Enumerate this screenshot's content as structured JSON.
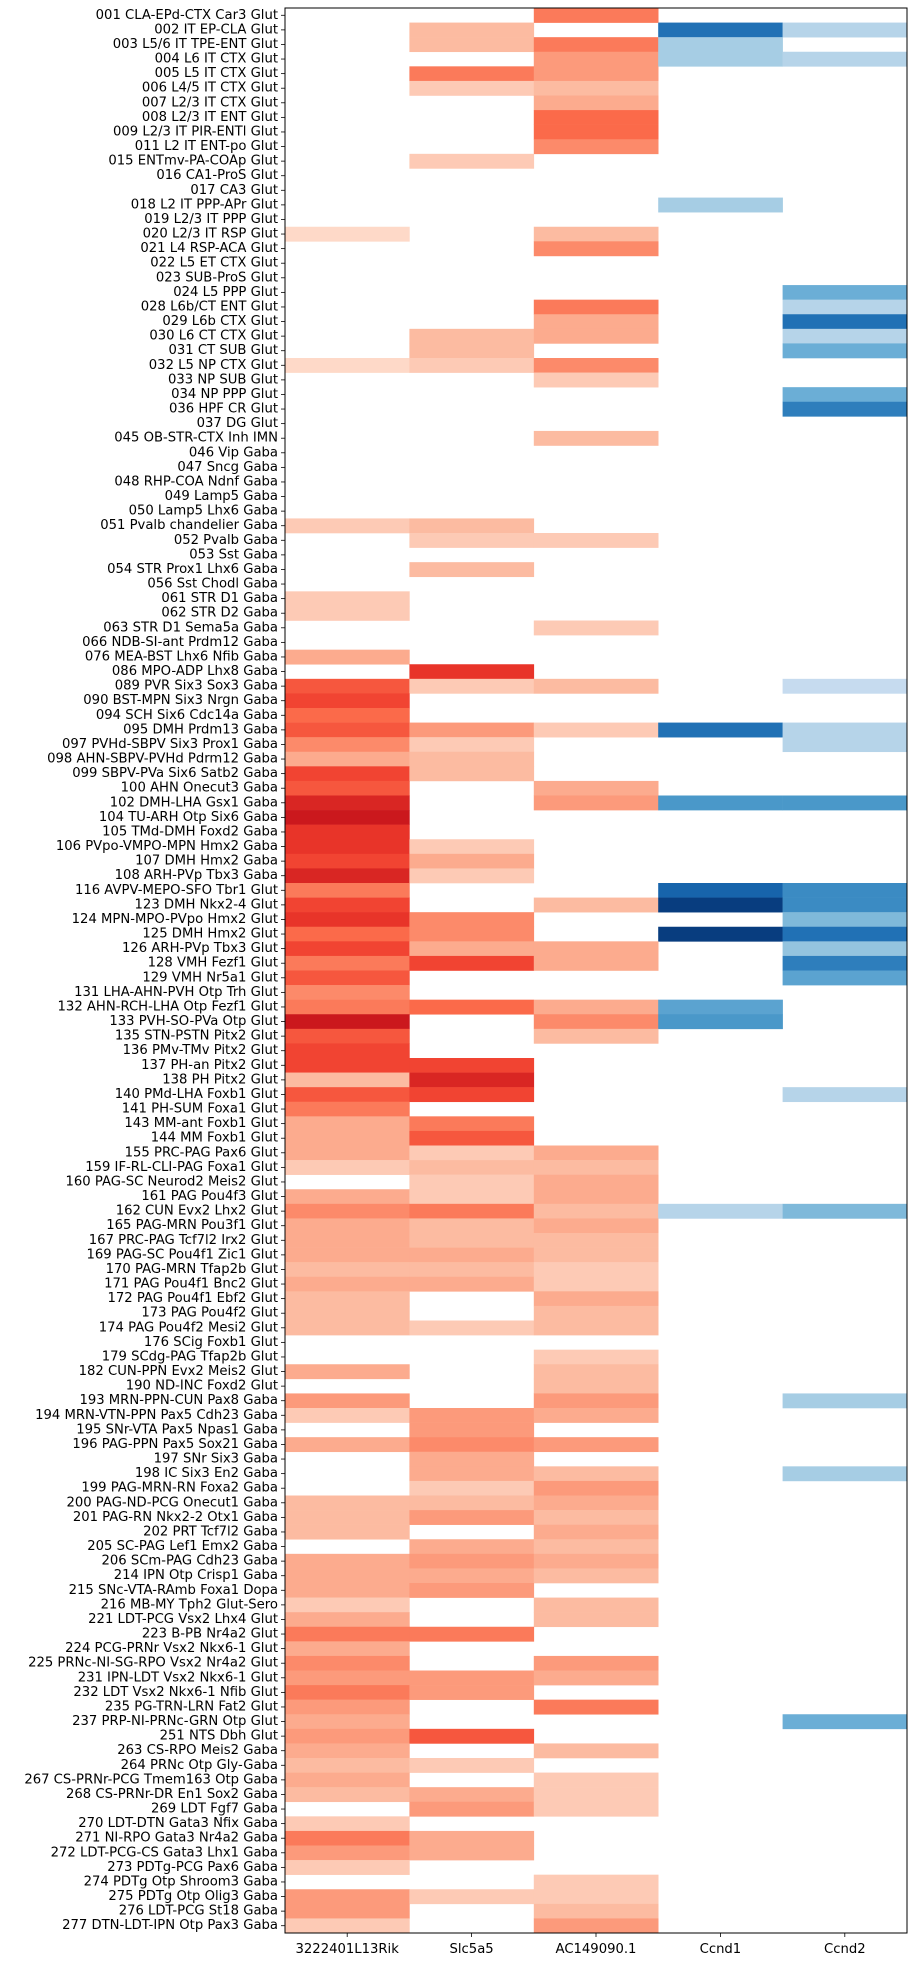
{
  "chart_data": {
    "type": "heatmap",
    "title": "",
    "xlabel": "",
    "ylabel": "",
    "columns": [
      "3222401L13Rik",
      "Slc5a5",
      "AC149090.1",
      "Ccnd1",
      "Ccnd2"
    ],
    "column_colormaps": [
      "reds",
      "reds",
      "reds",
      "blues",
      "blues"
    ],
    "value_range": [
      0,
      1
    ],
    "rows": [
      "001 CLA-EPd-CTX Car3 Glut",
      "002 IT EP-CLA Glut",
      "003 L5/6 IT TPE-ENT Glut",
      "004 L6 IT CTX Glut",
      "005 L5 IT CTX Glut",
      "006 L4/5 IT CTX Glut",
      "007 L2/3 IT CTX Glut",
      "008 L2/3 IT ENT Glut",
      "009 L2/3 IT PIR-ENTl Glut",
      "011 L2 IT ENT-po Glut",
      "015 ENTmv-PA-COAp Glut",
      "016 CA1-ProS Glut",
      "017 CA3 Glut",
      "018 L2 IT PPP-APr Glut",
      "019 L2/3 IT PPP Glut",
      "020 L2/3 IT RSP Glut",
      "021 L4 RSP-ACA Glut",
      "022 L5 ET CTX Glut",
      "023 SUB-ProS Glut",
      "024 L5 PPP Glut",
      "028 L6b/CT ENT Glut",
      "029 L6b CTX Glut",
      "030 L6 CT CTX Glut",
      "031 CT SUB Glut",
      "032 L5 NP CTX Glut",
      "033 NP SUB Glut",
      "034 NP PPP Glut",
      "036 HPF CR Glut",
      "037 DG Glut",
      "045 OB-STR-CTX Inh IMN",
      "046 Vip Gaba",
      "047 Sncg Gaba",
      "048 RHP-COA Ndnf Gaba",
      "049 Lamp5 Gaba",
      "050 Lamp5 Lhx6 Gaba",
      "051 Pvalb chandelier Gaba",
      "052 Pvalb Gaba",
      "053 Sst Gaba",
      "054 STR Prox1 Lhx6 Gaba",
      "056 Sst Chodl Gaba",
      "061 STR D1 Gaba",
      "062 STR D2 Gaba",
      "063 STR D1 Sema5a Gaba",
      "066 NDB-SI-ant Prdm12 Gaba",
      "076 MEA-BST Lhx6 Nfib Gaba",
      "086 MPO-ADP Lhx8 Gaba",
      "089 PVR Six3 Sox3 Gaba",
      "090 BST-MPN Six3 Nrgn Gaba",
      "094 SCH Six6 Cdc14a Gaba",
      "095 DMH Prdm13 Gaba",
      "097 PVHd-SBPV Six3 Prox1 Gaba",
      "098 AHN-SBPV-PVHd Pdrm12 Gaba",
      "099 SBPV-PVa Six6 Satb2 Gaba",
      "100 AHN Onecut3 Gaba",
      "102 DMH-LHA Gsx1 Gaba",
      "104 TU-ARH Otp Six6 Gaba",
      "105 TMd-DMH Foxd2 Gaba",
      "106 PVpo-VMPO-MPN Hmx2 Gaba",
      "107 DMH Hmx2 Gaba",
      "108 ARH-PVp Tbx3 Gaba",
      "116 AVPV-MEPO-SFO Tbr1 Glut",
      "123 DMH Nkx2-4 Glut",
      "124 MPN-MPO-PVpo Hmx2 Glut",
      "125 DMH Hmx2 Glut",
      "126 ARH-PVp Tbx3 Glut",
      "128 VMH Fezf1 Glut",
      "129 VMH Nr5a1 Glut",
      "131 LHA-AHN-PVH Otp Trh Glut",
      "132 AHN-RCH-LHA Otp Fezf1 Glut",
      "133 PVH-SO-PVa Otp Glut",
      "135 STN-PSTN Pitx2 Glut",
      "136 PMv-TMv Pitx2 Glut",
      "137 PH-an Pitx2 Glut",
      "138 PH Pitx2 Glut",
      "140 PMd-LHA Foxb1 Glut",
      "141 PH-SUM Foxa1 Glut",
      "143 MM-ant Foxb1 Glut",
      "144 MM Foxb1 Glut",
      "155 PRC-PAG Pax6 Glut",
      "159 IF-RL-CLI-PAG Foxa1 Glut",
      "160 PAG-SC Neurod2 Meis2 Glut",
      "161 PAG Pou4f3 Glut",
      "162 CUN Evx2 Lhx2 Glut",
      "165 PAG-MRN Pou3f1 Glut",
      "167 PRC-PAG Tcf7l2 Irx2 Glut",
      "169 PAG-SC Pou4f1 Zic1 Glut",
      "170 PAG-MRN Tfap2b Glut",
      "171 PAG Pou4f1 Bnc2 Glut",
      "172 PAG Pou4f1 Ebf2 Glut",
      "173 PAG Pou4f2 Glut",
      "174 PAG Pou4f2 Mesi2 Glut",
      "176 SCig Foxb1 Glut",
      "179 SCdg-PAG Tfap2b Glut",
      "182 CUN-PPN Evx2 Meis2 Glut",
      "190 ND-INC Foxd2 Glut",
      "193 MRN-PPN-CUN Pax8 Gaba",
      "194 MRN-VTN-PPN Pax5 Cdh23 Gaba",
      "195 SNr-VTA Pax5 Npas1 Gaba",
      "196 PAG-PPN Pax5 Sox21 Gaba",
      "197 SNr Six3 Gaba",
      "198 IC Six3 En2 Gaba",
      "199 PAG-MRN-RN Foxa2 Gaba",
      "200 PAG-ND-PCG Onecut1 Gaba",
      "201 PAG-RN Nkx2-2 Otx1 Gaba",
      "202 PRT Tcf7l2 Gaba",
      "205 SC-PAG Lef1 Emx2 Gaba",
      "206 SCm-PAG Cdh23 Gaba",
      "214 IPN Otp Crisp1 Gaba",
      "215 SNc-VTA-RAmb Foxa1 Dopa",
      "216 MB-MY Tph2 Glut-Sero",
      "221 LDT-PCG Vsx2 Lhx4 Glut",
      "223 B-PB Nr4a2 Glut",
      "224 PCG-PRNr Vsx2 Nkx6-1 Glut",
      "225 PRNc-NI-SG-RPO Vsx2 Nr4a2 Glut",
      "231 IPN-LDT Vsx2 Nkx6-1 Glut",
      "232 LDT Vsx2 Nkx6-1 Nfib Glut",
      "235 PG-TRN-LRN Fat2 Glut",
      "237 PRP-NI-PRNc-GRN Otp Glut",
      "251 NTS Dbh Glut",
      "263 CS-RPO Meis2 Gaba",
      "264 PRNc Otp Gly-Gaba",
      "267 CS-PRNr-PCG Tmem163 Otp Gaba",
      "268 CS-PRNr-DR En1 Sox2 Gaba",
      "269 LDT Fgf7 Gaba",
      "270 LDT-DTN Gata3 Nfix Gaba",
      "271 NI-RPO Gata3 Nr4a2 Gaba",
      "272 LDT-PCG-CS Gata3 Lhx1 Gaba",
      "273 PDTg-PCG Pax6 Gaba",
      "274 PDTg Otp Shroom3 Gaba",
      "275 PDTg Otp Olig3 Gaba",
      "276 LDT-PCG St18 Gaba",
      "277 DTN-LDT-IPN Otp Pax3 Gaba"
    ],
    "values": [
      [
        0,
        0,
        0.45,
        0,
        0
      ],
      [
        0,
        0.25,
        0,
        0.75,
        0.3
      ],
      [
        0,
        0.25,
        0.45,
        0.35,
        0
      ],
      [
        0,
        0,
        0.35,
        0.35,
        0.3
      ],
      [
        0,
        0.45,
        0.35,
        0,
        0
      ],
      [
        0,
        0.2,
        0.25,
        0,
        0
      ],
      [
        0,
        0,
        0.3,
        0,
        0
      ],
      [
        0,
        0,
        0.5,
        0,
        0
      ],
      [
        0,
        0,
        0.5,
        0,
        0
      ],
      [
        0,
        0,
        0.4,
        0,
        0
      ],
      [
        0,
        0.2,
        0,
        0,
        0
      ],
      [
        0,
        0,
        0,
        0,
        0
      ],
      [
        0,
        0,
        0,
        0,
        0
      ],
      [
        0,
        0,
        0,
        0.35,
        0
      ],
      [
        0,
        0,
        0,
        0,
        0
      ],
      [
        0.15,
        0,
        0.25,
        0,
        0
      ],
      [
        0,
        0,
        0.4,
        0,
        0
      ],
      [
        0,
        0,
        0,
        0,
        0
      ],
      [
        0,
        0,
        0,
        0,
        0
      ],
      [
        0,
        0,
        0,
        0,
        0.5
      ],
      [
        0,
        0,
        0.45,
        0,
        0.3
      ],
      [
        0,
        0,
        0.3,
        0,
        0.75
      ],
      [
        0,
        0.25,
        0.3,
        0,
        0.3
      ],
      [
        0,
        0.25,
        0,
        0,
        0.5
      ],
      [
        0.15,
        0.2,
        0.4,
        0,
        0
      ],
      [
        0,
        0,
        0.2,
        0,
        0
      ],
      [
        0,
        0,
        0,
        0,
        0.5
      ],
      [
        0,
        0,
        0,
        0,
        0.7
      ],
      [
        0,
        0,
        0,
        0,
        0
      ],
      [
        0,
        0,
        0.25,
        0,
        0
      ],
      [
        0,
        0,
        0,
        0,
        0
      ],
      [
        0,
        0,
        0,
        0,
        0
      ],
      [
        0,
        0,
        0,
        0,
        0
      ],
      [
        0,
        0,
        0,
        0,
        0
      ],
      [
        0,
        0,
        0,
        0,
        0
      ],
      [
        0.2,
        0.25,
        0,
        0,
        0
      ],
      [
        0,
        0.2,
        0.2,
        0,
        0
      ],
      [
        0,
        0,
        0,
        0,
        0
      ],
      [
        0,
        0.25,
        0,
        0,
        0
      ],
      [
        0,
        0,
        0,
        0,
        0
      ],
      [
        0.2,
        0,
        0,
        0,
        0
      ],
      [
        0.2,
        0,
        0,
        0,
        0
      ],
      [
        0,
        0,
        0.2,
        0,
        0
      ],
      [
        0,
        0,
        0,
        0,
        0
      ],
      [
        0.3,
        0,
        0,
        0,
        0
      ],
      [
        0,
        0.65,
        0,
        0,
        0
      ],
      [
        0.55,
        0.2,
        0.25,
        0,
        0.25
      ],
      [
        0.6,
        0,
        0,
        0,
        0
      ],
      [
        0.5,
        0,
        0,
        0,
        0
      ],
      [
        0.55,
        0.35,
        0.2,
        0.75,
        0.3
      ],
      [
        0.4,
        0.2,
        0,
        0,
        0.3
      ],
      [
        0.3,
        0.25,
        0,
        0,
        0
      ],
      [
        0.6,
        0.25,
        0,
        0,
        0
      ],
      [
        0.55,
        0,
        0.3,
        0,
        0
      ],
      [
        0.7,
        0,
        0.35,
        0.6,
        0.6
      ],
      [
        0.75,
        0,
        0,
        0,
        0
      ],
      [
        0.65,
        0,
        0,
        0,
        0
      ],
      [
        0.65,
        0.2,
        0,
        0,
        0
      ],
      [
        0.6,
        0.3,
        0,
        0,
        0
      ],
      [
        0.7,
        0.2,
        0,
        0,
        0
      ],
      [
        0.45,
        0,
        0,
        0.8,
        0.65
      ],
      [
        0.6,
        0,
        0.25,
        0.95,
        0.65
      ],
      [
        0.65,
        0.4,
        0,
        0,
        0.45
      ],
      [
        0.5,
        0.4,
        0,
        0.95,
        0.75
      ],
      [
        0.6,
        0.3,
        0.3,
        0,
        0.4
      ],
      [
        0.45,
        0.6,
        0.3,
        0,
        0.7
      ],
      [
        0.55,
        0,
        0,
        0,
        0.55
      ],
      [
        0.4,
        0,
        0,
        0,
        0
      ],
      [
        0.45,
        0.5,
        0.3,
        0.55,
        0
      ],
      [
        0.75,
        0,
        0.4,
        0.6,
        0
      ],
      [
        0.55,
        0,
        0.25,
        0,
        0
      ],
      [
        0.6,
        0,
        0,
        0,
        0
      ],
      [
        0.6,
        0.6,
        0,
        0,
        0
      ],
      [
        0.25,
        0.7,
        0,
        0,
        0
      ],
      [
        0.55,
        0.6,
        0,
        0,
        0.3
      ],
      [
        0.45,
        0,
        0,
        0,
        0
      ],
      [
        0.3,
        0.45,
        0,
        0,
        0
      ],
      [
        0.3,
        0.55,
        0,
        0,
        0
      ],
      [
        0.3,
        0.2,
        0.3,
        0,
        0
      ],
      [
        0.2,
        0.25,
        0.25,
        0,
        0
      ],
      [
        0,
        0.2,
        0.3,
        0,
        0
      ],
      [
        0.3,
        0.2,
        0.3,
        0,
        0
      ],
      [
        0.4,
        0.45,
        0.25,
        0.3,
        0.45
      ],
      [
        0.3,
        0.25,
        0.3,
        0,
        0
      ],
      [
        0.3,
        0.25,
        0.25,
        0,
        0
      ],
      [
        0.3,
        0.3,
        0.25,
        0,
        0
      ],
      [
        0.25,
        0.25,
        0.2,
        0,
        0
      ],
      [
        0.3,
        0.3,
        0.2,
        0,
        0
      ],
      [
        0.25,
        0,
        0.3,
        0,
        0
      ],
      [
        0.25,
        0,
        0.25,
        0,
        0
      ],
      [
        0.25,
        0.2,
        0.25,
        0,
        0
      ],
      [
        0,
        0,
        0,
        0,
        0
      ],
      [
        0,
        0,
        0.2,
        0,
        0
      ],
      [
        0.3,
        0,
        0.25,
        0,
        0
      ],
      [
        0,
        0,
        0.25,
        0,
        0
      ],
      [
        0.35,
        0,
        0.35,
        0,
        0.35
      ],
      [
        0.2,
        0.35,
        0.3,
        0,
        0
      ],
      [
        0,
        0.35,
        0,
        0,
        0
      ],
      [
        0.3,
        0.4,
        0.35,
        0,
        0
      ],
      [
        0,
        0.3,
        0,
        0,
        0
      ],
      [
        0,
        0.3,
        0.25,
        0,
        0.35
      ],
      [
        0,
        0.2,
        0.35,
        0,
        0
      ],
      [
        0.25,
        0.25,
        0.3,
        0,
        0
      ],
      [
        0.25,
        0.35,
        0.25,
        0,
        0
      ],
      [
        0.25,
        0,
        0.3,
        0,
        0
      ],
      [
        0,
        0.3,
        0.25,
        0,
        0
      ],
      [
        0.3,
        0.35,
        0.3,
        0,
        0
      ],
      [
        0.3,
        0.3,
        0.25,
        0,
        0
      ],
      [
        0.3,
        0.35,
        0,
        0,
        0
      ],
      [
        0.2,
        0,
        0.25,
        0,
        0
      ],
      [
        0.3,
        0,
        0.25,
        0,
        0
      ],
      [
        0.45,
        0.45,
        0,
        0,
        0
      ],
      [
        0.3,
        0,
        0,
        0,
        0
      ],
      [
        0.4,
        0,
        0.35,
        0,
        0
      ],
      [
        0.35,
        0.35,
        0.3,
        0,
        0
      ],
      [
        0.45,
        0.35,
        0,
        0,
        0
      ],
      [
        0.35,
        0,
        0.45,
        0,
        0
      ],
      [
        0.3,
        0,
        0,
        0,
        0.5
      ],
      [
        0.35,
        0.55,
        0,
        0,
        0
      ],
      [
        0.3,
        0,
        0.25,
        0,
        0
      ],
      [
        0.25,
        0.2,
        0,
        0,
        0
      ],
      [
        0.3,
        0,
        0.2,
        0,
        0
      ],
      [
        0.25,
        0.3,
        0.2,
        0,
        0
      ],
      [
        0,
        0.35,
        0.2,
        0,
        0
      ],
      [
        0.2,
        0,
        0,
        0,
        0
      ],
      [
        0.45,
        0.3,
        0,
        0,
        0
      ],
      [
        0.35,
        0.3,
        0,
        0,
        0
      ],
      [
        0.2,
        0,
        0,
        0,
        0
      ],
      [
        0,
        0,
        0.2,
        0,
        0
      ],
      [
        0.35,
        0.2,
        0.2,
        0,
        0
      ],
      [
        0.35,
        0,
        0.25,
        0,
        0
      ],
      [
        0.2,
        0,
        0.35,
        0,
        0
      ]
    ]
  },
  "colors": {
    "reds": [
      "#fff5f0",
      "#fee0d2",
      "#fcbba1",
      "#fc9272",
      "#fb6a4a",
      "#ef3b2c",
      "#cb181d",
      "#a50f15",
      "#67000d"
    ],
    "blues": [
      "#f7fbff",
      "#deebf7",
      "#c6dbef",
      "#9ecae1",
      "#6baed6",
      "#4292c6",
      "#2171b5",
      "#08519c",
      "#08306b"
    ],
    "empty_cell": "#ffffff",
    "label_text": "#000000",
    "frame": "#000000"
  }
}
